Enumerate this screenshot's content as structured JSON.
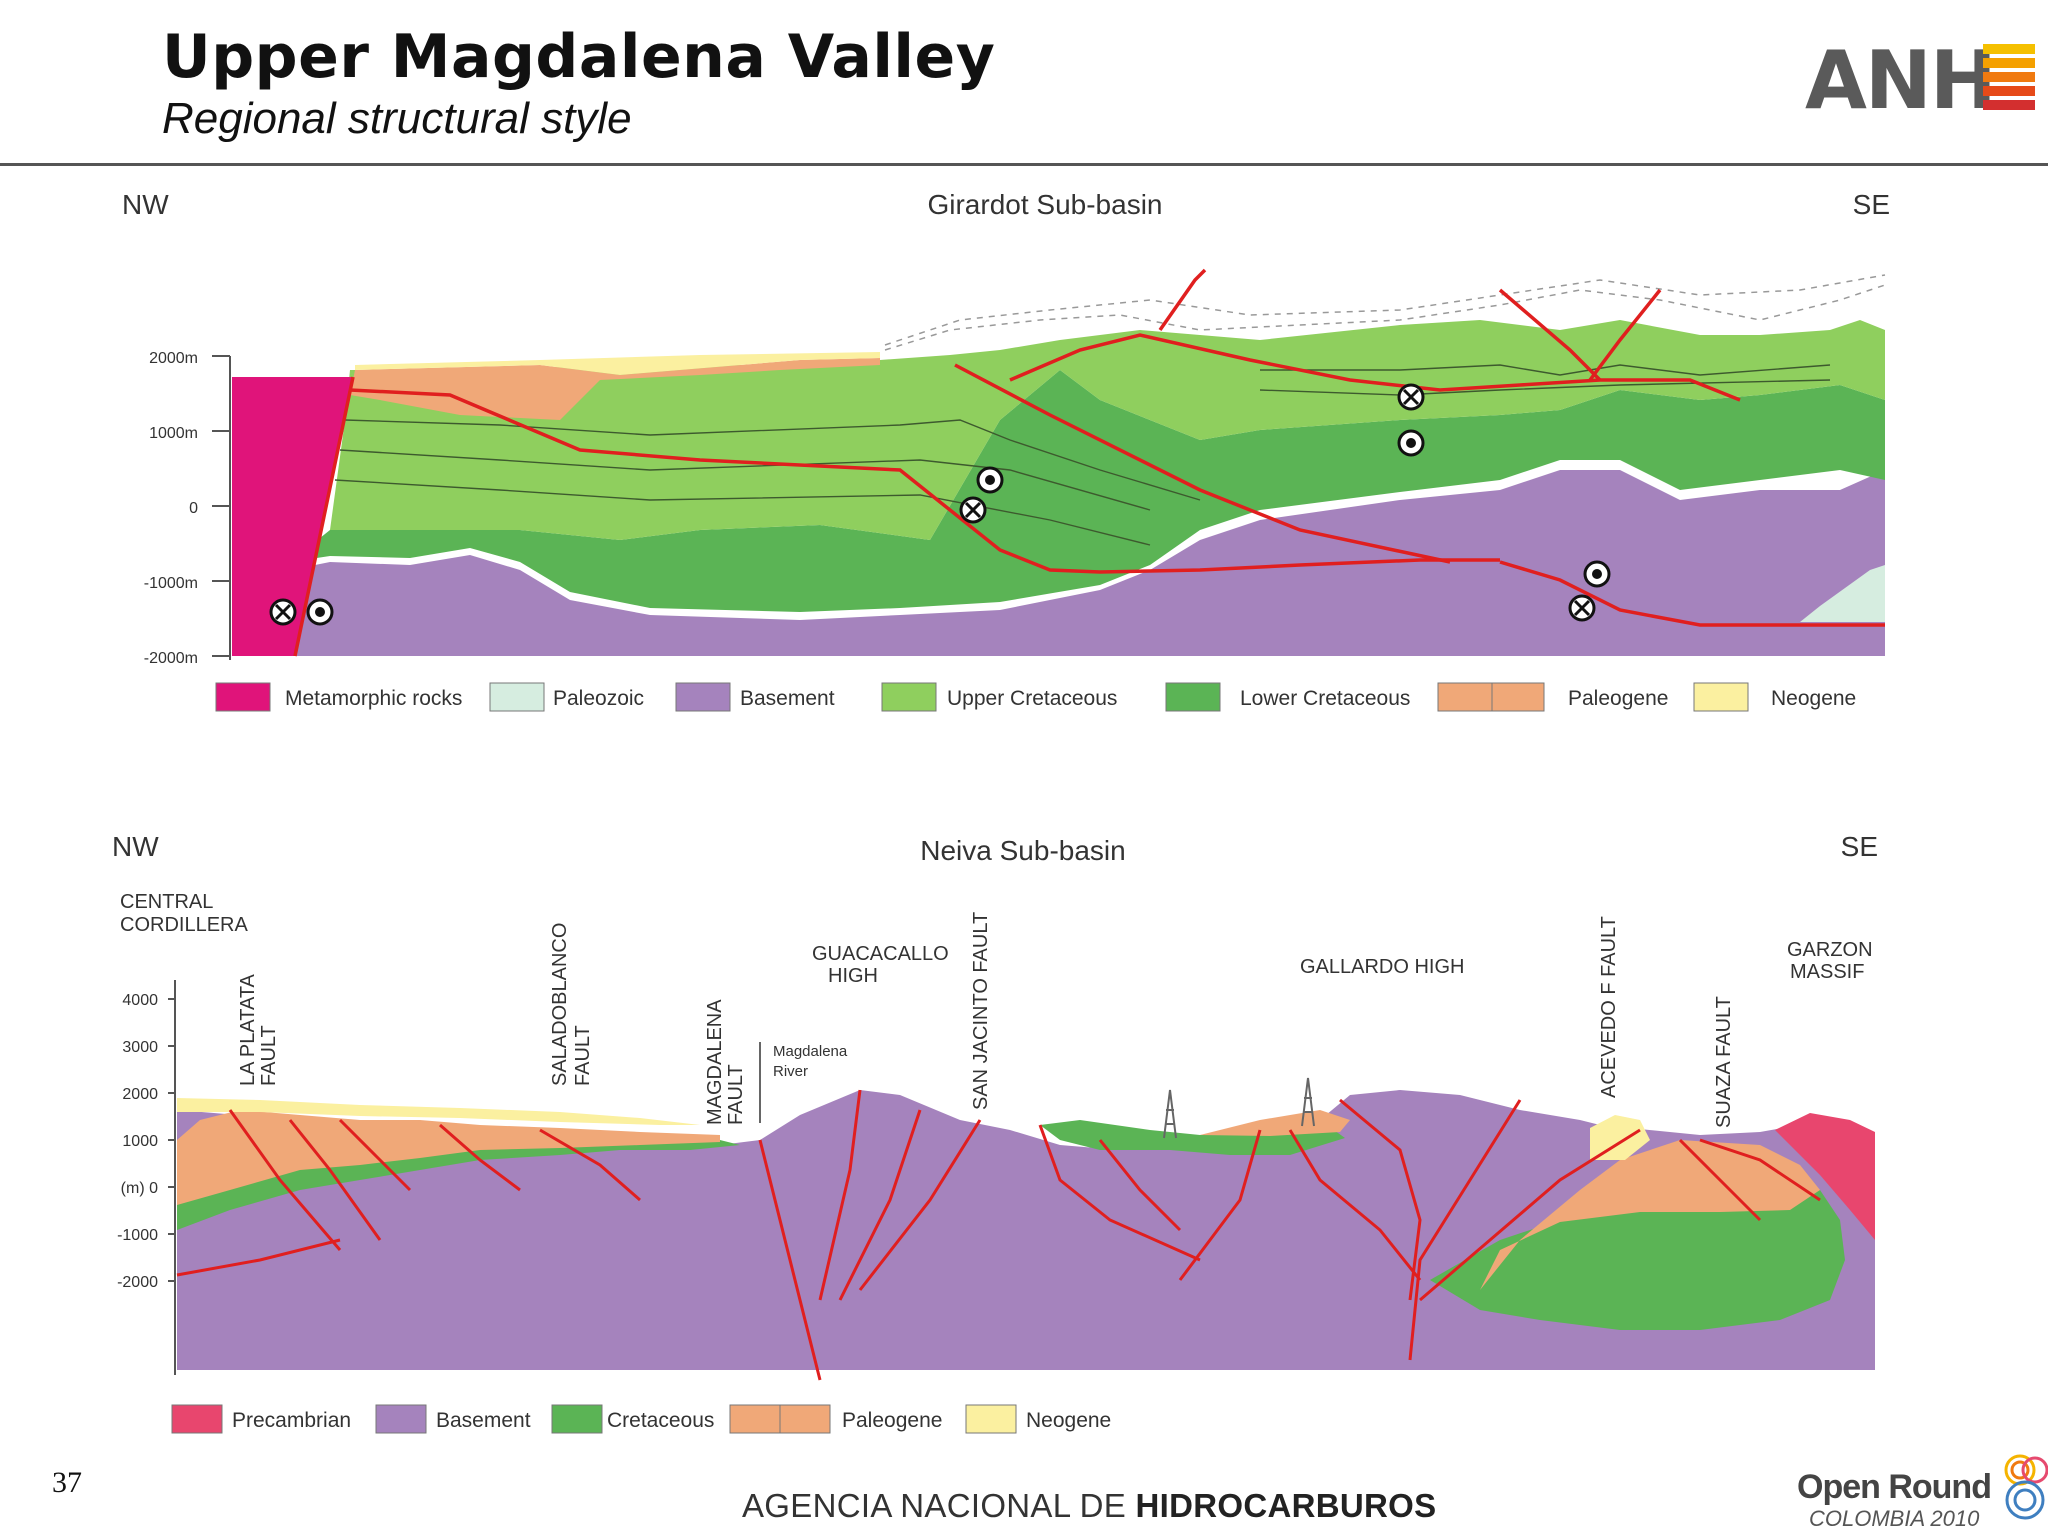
{
  "header": {
    "title": "Upper Magdalena Valley",
    "subtitle": "Regional structural style",
    "logo_text": "ANH"
  },
  "section_top": {
    "left_label": "NW",
    "title": "Girardot Sub-basin",
    "right_label": "SE",
    "depth_ticks": [
      "2000m",
      "1000m",
      "0",
      "-1000m",
      "-2000m"
    ],
    "legend": [
      {
        "label": "Metamorphic rocks",
        "color": "#e0147a"
      },
      {
        "label": "Paleozoic",
        "color": "#d6ede0"
      },
      {
        "label": "Basement",
        "color": "#a583bd"
      },
      {
        "label": "Upper Cretaceous",
        "color": "#8fcf5e"
      },
      {
        "label": "Lower Cretaceous",
        "color": "#5bb455"
      },
      {
        "label": "Paleogene",
        "color": "#f0a878"
      },
      {
        "label": "Neogene",
        "color": "#fbf0a0"
      }
    ]
  },
  "section_bottom": {
    "left_label": "NW",
    "title": "Neiva Sub-basin",
    "right_label": "SE",
    "labels": {
      "central_cordillera_1": "CENTRAL",
      "central_cordillera_2": "CORDILLERA",
      "la_platata_1": "LA PLATATA",
      "la_platata_2": "FAULT",
      "saladoblanco_1": "SALADOBLANCO",
      "saladoblanco_2": "FAULT",
      "magdalena_1": "MAGDALENA",
      "magdalena_2": "FAULT",
      "river_1": "Magdalena",
      "river_2": "River",
      "guacacallo_1": "GUACACALLO",
      "guacacallo_2": "HIGH",
      "san_jacinto": "SAN JACINTO FAULT",
      "gallardo": "GALLARDO HIGH",
      "acevedo": "ACEVEDO F FAULT",
      "suaza": "SUAZA FAULT",
      "garzon_1": "GARZON",
      "garzon_2": "MASSIF"
    },
    "depth_ticks": [
      "4000",
      "3000",
      "2000",
      "1000",
      "(m)  0",
      "-1000",
      "-2000"
    ],
    "legend": [
      {
        "label": "Precambrian",
        "color": "#e8466e"
      },
      {
        "label": "Basement",
        "color": "#a583bd"
      },
      {
        "label": "Cretaceous",
        "color": "#5bb455"
      },
      {
        "label": "Paleogene",
        "color": "#f0a878"
      },
      {
        "label": "Neogene",
        "color": "#fbf0a0"
      }
    ]
  },
  "footer": {
    "page_number": "37",
    "agency_prefix": "AGENCIA NACIONAL DE ",
    "agency_bold": "HIDROCARBUROS",
    "logo_line1": "Open Round",
    "logo_line2": "COLOMBIA 2010"
  }
}
